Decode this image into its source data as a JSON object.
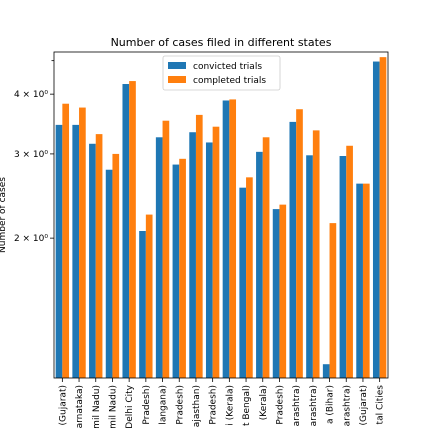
{
  "chart_data": {
    "type": "bar",
    "title": "Number of cases filed in different states",
    "ylabel": "Number of cases",
    "xlabel": "",
    "yscale": "log",
    "ylim": [
      1.02,
      4.9
    ],
    "yticks": [
      {
        "value": 2,
        "label": "2 × 10⁰"
      },
      {
        "value": 3,
        "label": "3 × 10⁰"
      },
      {
        "value": 4,
        "label": "4 × 10⁰"
      }
    ],
    "legend_position": "top-center",
    "categories": [
      "(Gujarat)",
      "arnataka)",
      "mil Nadu)",
      "mil Nadu)",
      "Delhi City",
      "Pradesh)",
      "langana)",
      "Pradesh)",
      "ajasthan)",
      "Pradesh)",
      "i (Kerala)",
      "t Bengal)",
      "(Kerala)",
      "Pradesh)",
      "arashtra)",
      "arashtra)",
      "a (Bihar)",
      "arashtra)",
      "(Gujarat)",
      "tal Cities"
    ],
    "series": [
      {
        "name": "convicted trials",
        "color": "#1f77b4",
        "values": [
          3.45,
          3.45,
          3.15,
          2.78,
          4.2,
          2.07,
          3.25,
          2.85,
          3.33,
          3.17,
          3.88,
          2.55,
          3.03,
          2.3,
          3.5,
          2.98,
          1.09,
          2.97,
          2.6,
          4.68
        ]
      },
      {
        "name": "completed trials",
        "color": "#ff7f0e",
        "values": [
          3.82,
          3.75,
          3.3,
          3.0,
          4.26,
          2.24,
          3.52,
          2.93,
          3.62,
          3.42,
          3.9,
          2.68,
          3.25,
          2.35,
          3.72,
          3.36,
          2.15,
          3.12,
          2.6,
          4.78
        ]
      }
    ]
  }
}
